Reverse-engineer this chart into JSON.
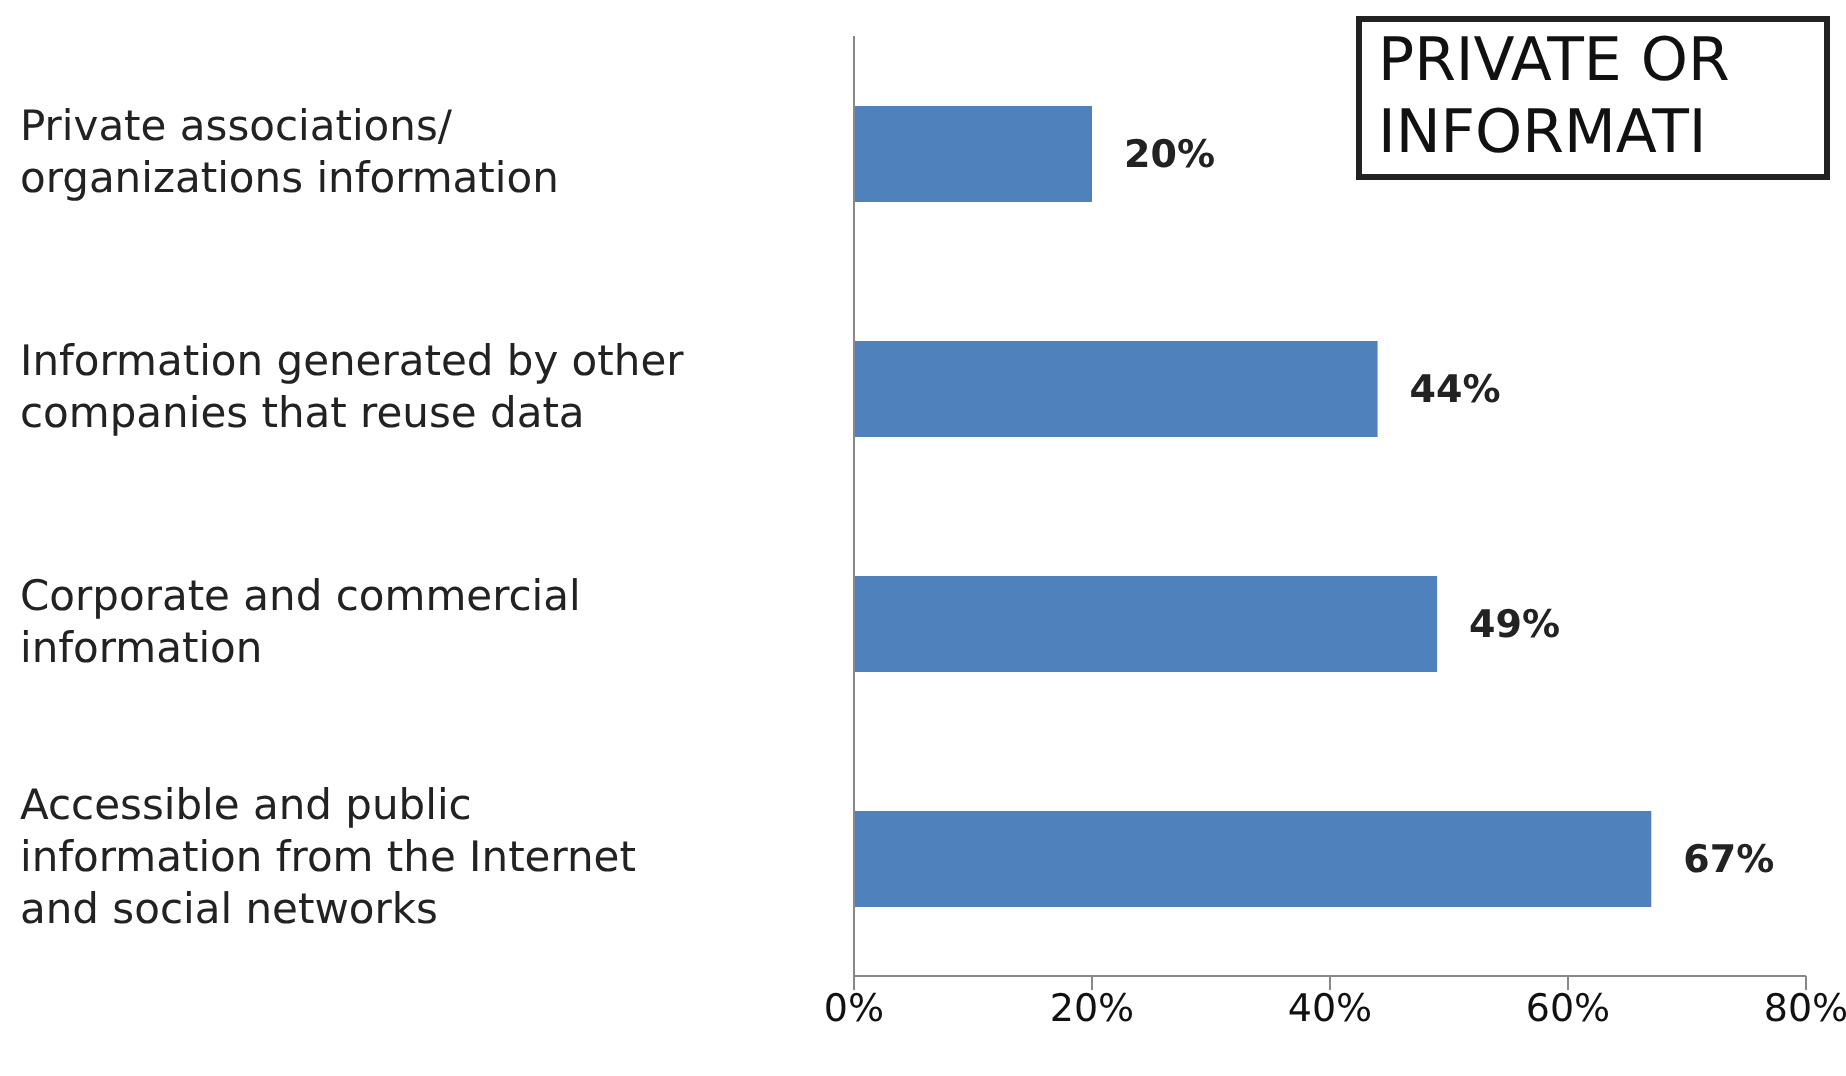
{
  "chart_data": {
    "type": "bar",
    "orientation": "horizontal",
    "title": "PRIVATE OR INFORMATI",
    "categories": [
      "Private associations/ organizations information",
      "Information generated by other companies that reuse data",
      "Corporate and commercial information",
      "Accessible and public information from the Internet and social networks"
    ],
    "values": [
      20,
      44,
      49,
      67
    ],
    "color": "#4f81bd",
    "value_labels": [
      "20%",
      "44%",
      "49%",
      "67%"
    ],
    "xlim": [
      0,
      80
    ],
    "xticks": [
      {
        "value": 0,
        "label": "0%"
      },
      {
        "value": 20,
        "label": "20%"
      },
      {
        "value": 40,
        "label": "40%"
      },
      {
        "value": 60,
        "label": "60%"
      },
      {
        "value": 80,
        "label": "80%"
      }
    ],
    "grid": false,
    "legend": false
  }
}
